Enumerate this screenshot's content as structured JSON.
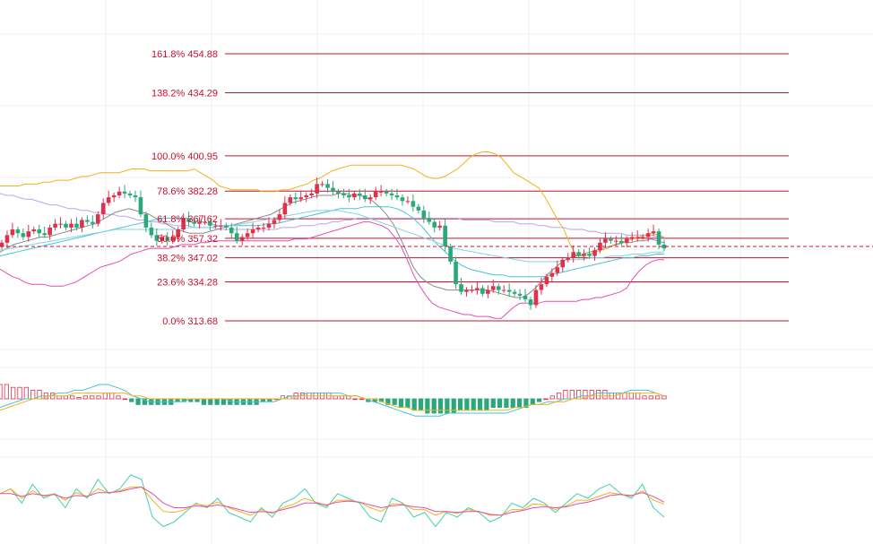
{
  "chart_data": [
    {
      "type": "candlestick",
      "title": "",
      "colors": {
        "up": "#e0304a",
        "down": "#2aa87a",
        "fib_line": "#c8102e",
        "fib_text": "#c8102e",
        "bb_upper": "#f2b11c",
        "bb_lower": "#e24fb0",
        "bb_mid": "#b8a5e8",
        "ma_short": "#8a8a8a",
        "ma_mid": "#44c2d8",
        "ma_long": "#7fd6e0",
        "grid": "#eef0f3"
      },
      "fib_levels": [
        {
          "ratio": "161.8%",
          "price": 454.88,
          "label": "161.8% 454.88"
        },
        {
          "ratio": "138.2%",
          "price": 434.29,
          "label": "138.2% 434.29"
        },
        {
          "ratio": "100.0%",
          "price": 400.95,
          "label": "100.0% 400.95"
        },
        {
          "ratio": "78.6%",
          "price": 382.28,
          "label": "78.6% 382.28"
        },
        {
          "ratio": "61.8%",
          "price": 367.62,
          "label": "61.8% 367.62"
        },
        {
          "ratio": "50.0%",
          "price": 357.32,
          "label": "50.0% 357.32"
        },
        {
          "ratio": "38.2%",
          "price": 347.02,
          "label": "38.2% 347.02"
        },
        {
          "ratio": "23.6%",
          "price": 334.28,
          "label": "23.6% 334.28"
        },
        {
          "ratio": "0.0%",
          "price": 313.68,
          "label": "0.0% 313.68"
        }
      ],
      "current_price": 353.0,
      "close": [
        355,
        359,
        362,
        360,
        358,
        361,
        362,
        360,
        359,
        363,
        365,
        365,
        363,
        365,
        363,
        367,
        366,
        365,
        370,
        376,
        379,
        380,
        382,
        381,
        380,
        379,
        370,
        363,
        359,
        356,
        358,
        356,
        358,
        362,
        368,
        366,
        365,
        366,
        366,
        364,
        364,
        364,
        363,
        360,
        356,
        358,
        360,
        362,
        363,
        363,
        365,
        367,
        370,
        376,
        379,
        378,
        379,
        380,
        381,
        386,
        386,
        384,
        382,
        381,
        380,
        379,
        381,
        380,
        378,
        379,
        382,
        382,
        381,
        380,
        379,
        377,
        377,
        374,
        372,
        368,
        366,
        363,
        364,
        353,
        345,
        333,
        329,
        330,
        330,
        331,
        328,
        330,
        332,
        330,
        330,
        329,
        328,
        327,
        325,
        322,
        330,
        333,
        337,
        339,
        342,
        346,
        347,
        350,
        348,
        349,
        348,
        351,
        355,
        357,
        356,
        356,
        355,
        357,
        358,
        358,
        358,
        360,
        361,
        354,
        352
      ],
      "bollinger_upper": [
        385,
        385,
        385,
        385,
        386,
        386,
        386,
        387,
        387,
        388,
        388,
        388,
        389,
        390,
        390,
        391,
        392,
        392,
        392,
        392,
        393,
        394,
        394,
        394,
        393,
        393,
        393,
        393,
        393,
        393,
        393,
        394,
        392,
        390,
        388,
        385,
        384,
        383,
        383,
        383,
        383,
        383,
        382,
        382,
        382,
        383,
        383,
        384,
        385,
        386,
        388,
        389,
        391,
        393,
        394,
        395,
        396,
        396,
        396,
        396,
        396,
        396,
        396,
        396,
        396,
        395,
        394,
        392,
        390,
        389,
        389,
        390,
        392,
        394,
        397,
        400,
        402,
        403,
        403,
        402,
        400,
        396,
        392,
        390,
        388,
        386,
        384,
        379,
        373,
        367,
        362,
        354,
        348,
        348,
        349,
        350,
        351,
        352,
        354,
        355,
        356,
        357,
        358,
        359,
        360,
        359,
        358
      ],
      "bollinger_mid": [
        381,
        380,
        380,
        379,
        378,
        378,
        377,
        376,
        375,
        375,
        374,
        373,
        373,
        372,
        372,
        371,
        371,
        370,
        370,
        369,
        369,
        368,
        367,
        367,
        366,
        366,
        365,
        365,
        364,
        364,
        364,
        363,
        363,
        363,
        363,
        362,
        362,
        362,
        362,
        362,
        362,
        362,
        362,
        362,
        362,
        363,
        363,
        363,
        364,
        364,
        364,
        365,
        365,
        366,
        366,
        367,
        367,
        368,
        368,
        368,
        368,
        368,
        368,
        368,
        368,
        368,
        368,
        368,
        368,
        368,
        368,
        368,
        368,
        368,
        367,
        367,
        367,
        367,
        367,
        366,
        366,
        366,
        366,
        365,
        365,
        365,
        364,
        364,
        363,
        363,
        363,
        362,
        362,
        362,
        361,
        361,
        360,
        360,
        360,
        360,
        359,
        359,
        359,
        359,
        359,
        358,
        358
      ],
      "bollinger_lower": [
        341,
        339,
        337,
        336,
        334,
        333,
        333,
        333,
        332,
        332,
        332,
        333,
        334,
        336,
        338,
        340,
        342,
        343,
        344,
        345,
        347,
        349,
        350,
        351,
        352,
        352,
        352,
        352,
        353,
        354,
        354,
        354,
        355,
        355,
        356,
        356,
        356,
        356,
        356,
        356,
        356,
        356,
        356,
        356,
        356,
        356,
        356,
        357,
        357,
        357,
        358,
        359,
        360,
        361,
        362,
        363,
        364,
        365,
        366,
        366,
        365,
        364,
        362,
        358,
        353,
        346,
        338,
        332,
        327,
        323,
        321,
        320,
        319,
        318,
        317,
        317,
        316,
        316,
        316,
        315,
        315,
        318,
        321,
        323,
        323,
        323,
        323,
        324,
        324,
        324,
        324,
        324,
        324,
        325,
        325,
        326,
        326,
        327,
        328,
        329,
        331,
        336,
        340,
        343,
        345,
        346,
        346
      ],
      "ma_short": [
        350,
        352,
        354,
        355,
        356,
        357,
        358,
        358,
        359,
        360,
        361,
        362,
        363,
        364,
        365,
        367,
        369,
        371,
        372,
        373,
        372,
        371,
        370,
        368,
        366,
        364,
        362,
        361,
        360,
        360,
        360,
        361,
        362,
        363,
        364,
        365,
        366,
        367,
        368,
        369,
        370,
        372,
        374,
        376,
        377,
        378,
        379,
        380,
        380,
        380,
        381,
        381,
        380,
        380,
        379,
        377,
        374,
        370,
        365,
        358,
        350,
        342,
        337,
        334,
        332,
        331,
        330,
        330,
        330,
        330,
        330,
        330,
        330,
        329,
        328,
        327,
        326,
        326,
        328,
        331,
        335,
        339,
        342,
        345,
        347,
        348,
        349,
        350,
        351,
        352,
        353,
        354,
        355,
        355,
        356,
        356,
        357,
        356,
        355
      ],
      "ma_mid": [
        348,
        349,
        350,
        351,
        352,
        353,
        354,
        355,
        356,
        357,
        358,
        359,
        360,
        361,
        362,
        363,
        364,
        365,
        366,
        367,
        368,
        368,
        368,
        368,
        367,
        366,
        365,
        364,
        364,
        364,
        364,
        364,
        364,
        365,
        365,
        366,
        367,
        368,
        369,
        370,
        371,
        372,
        373,
        373,
        373,
        374,
        374,
        374,
        374,
        373,
        371,
        368,
        364,
        359,
        354,
        350,
        346,
        343,
        341,
        340,
        339,
        338,
        338,
        337,
        337,
        337,
        337,
        337,
        338,
        339,
        340,
        341,
        342,
        343,
        344,
        345,
        346,
        347,
        347,
        348,
        348,
        349,
        349
      ],
      "ma_long": [
        351,
        352,
        353,
        354,
        355,
        356,
        357,
        358,
        359,
        360,
        361,
        362,
        362,
        362,
        362,
        362,
        362,
        362,
        363,
        363,
        363,
        364,
        364,
        365,
        366,
        367,
        368,
        369,
        370,
        371,
        372,
        372,
        372,
        371,
        370,
        368,
        366,
        364,
        362,
        360,
        358,
        356,
        354,
        352,
        351,
        350,
        349,
        348,
        347,
        346,
        345,
        345,
        345,
        345,
        346,
        346,
        347,
        347,
        348,
        348,
        349,
        349,
        350,
        350
      ]
    },
    {
      "type": "macd",
      "histogram": [
        5,
        5,
        4,
        4,
        4,
        3,
        3,
        2,
        2,
        1,
        1,
        1,
        0.5,
        1,
        1,
        1,
        2,
        2,
        1,
        0,
        -1,
        -2,
        -2,
        -2,
        -2,
        -2,
        -2,
        -1,
        -1,
        -1,
        -1,
        -2,
        -2,
        -2,
        -2,
        -2,
        -2,
        -2,
        -2,
        -2,
        -1,
        -1,
        0,
        1,
        1,
        2,
        2,
        2,
        2,
        2,
        2,
        1,
        1,
        1,
        0,
        0,
        -1,
        -1,
        -1,
        -2,
        -2,
        -3,
        -3,
        -4,
        -4,
        -5,
        -5,
        -5,
        -5,
        -5,
        -4,
        -4,
        -4,
        -4,
        -4,
        -3,
        -3,
        -3,
        -3,
        -3,
        -3,
        -2,
        -1,
        0,
        1,
        2,
        3,
        3,
        3,
        3,
        3,
        3,
        3,
        2,
        2,
        2,
        2,
        2,
        1,
        1,
        1,
        1
      ],
      "dif": [
        -3,
        -2,
        -1,
        0,
        0,
        1,
        1,
        2,
        2,
        3,
        3,
        4,
        5,
        5,
        4,
        3,
        1,
        0,
        -1,
        -1,
        -1,
        -1,
        -1,
        0,
        0,
        0,
        0,
        0,
        -1,
        -1,
        -1,
        -1,
        -1,
        -1,
        0,
        1,
        1,
        2,
        2,
        2,
        2,
        2,
        1,
        1,
        0,
        -1,
        -2,
        -3,
        -4,
        -5,
        -6,
        -6,
        -6,
        -6,
        -5,
        -5,
        -5,
        -5,
        -5,
        -5,
        -5,
        -5,
        -4,
        -3,
        -2,
        -2,
        -1,
        -1,
        0,
        0,
        1,
        1,
        2,
        2,
        2,
        2,
        3,
        3,
        3,
        2,
        1
      ],
      "dea": [
        -4,
        -3,
        -2,
        -1,
        0,
        0,
        1,
        1,
        1,
        2,
        2,
        2,
        2,
        2,
        2,
        2,
        1,
        1,
        0,
        0,
        0,
        0,
        0,
        0,
        0,
        0,
        0,
        0,
        0,
        0,
        0,
        0,
        0,
        0,
        0,
        0,
        1,
        1,
        1,
        1,
        1,
        1,
        1,
        1,
        0,
        0,
        -1,
        -2,
        -3,
        -3,
        -4,
        -4,
        -4,
        -4,
        -4,
        -4,
        -4,
        -4,
        -4,
        -4,
        -4,
        -4,
        -3,
        -3,
        -2,
        -2,
        -2,
        -1,
        -1,
        0,
        0,
        1,
        1,
        1,
        1,
        2,
        2,
        2,
        2,
        2,
        1
      ]
    },
    {
      "type": "kdj",
      "k": [
        55,
        60,
        45,
        65,
        50,
        55,
        40,
        60,
        50,
        70,
        55,
        60,
        75,
        70,
        30,
        20,
        25,
        35,
        45,
        40,
        50,
        35,
        30,
        25,
        40,
        30,
        45,
        50,
        60,
        45,
        40,
        55,
        50,
        45,
        30,
        25,
        50,
        45,
        30,
        35,
        20,
        35,
        30,
        40,
        35,
        25,
        30,
        45,
        40,
        50,
        45,
        35,
        45,
        55,
        50,
        60,
        65,
        55,
        50,
        65,
        40,
        30
      ],
      "d": [
        55,
        55,
        52,
        55,
        53,
        54,
        50,
        53,
        52,
        56,
        56,
        57,
        60,
        62,
        55,
        45,
        40,
        40,
        42,
        41,
        43,
        41,
        38,
        35,
        36,
        35,
        38,
        41,
        45,
        45,
        43,
        46,
        47,
        46,
        43,
        40,
        42,
        43,
        41,
        40,
        36,
        36,
        35,
        36,
        36,
        33,
        32,
        35,
        37,
        40,
        41,
        40,
        41,
        44,
        46,
        49,
        53,
        54,
        53,
        56,
        52,
        46
      ],
      "j": [
        55,
        60,
        50,
        58,
        52,
        55,
        48,
        56,
        52,
        60,
        56,
        58,
        62,
        62,
        48,
        36,
        35,
        38,
        44,
        42,
        46,
        40,
        36,
        32,
        38,
        34,
        40,
        44,
        50,
        46,
        42,
        48,
        48,
        46,
        40,
        36,
        44,
        44,
        38,
        38,
        32,
        36,
        34,
        38,
        36,
        32,
        32,
        38,
        38,
        44,
        43,
        38,
        42,
        48,
        48,
        52,
        56,
        54,
        52,
        58,
        48,
        44
      ]
    }
  ]
}
